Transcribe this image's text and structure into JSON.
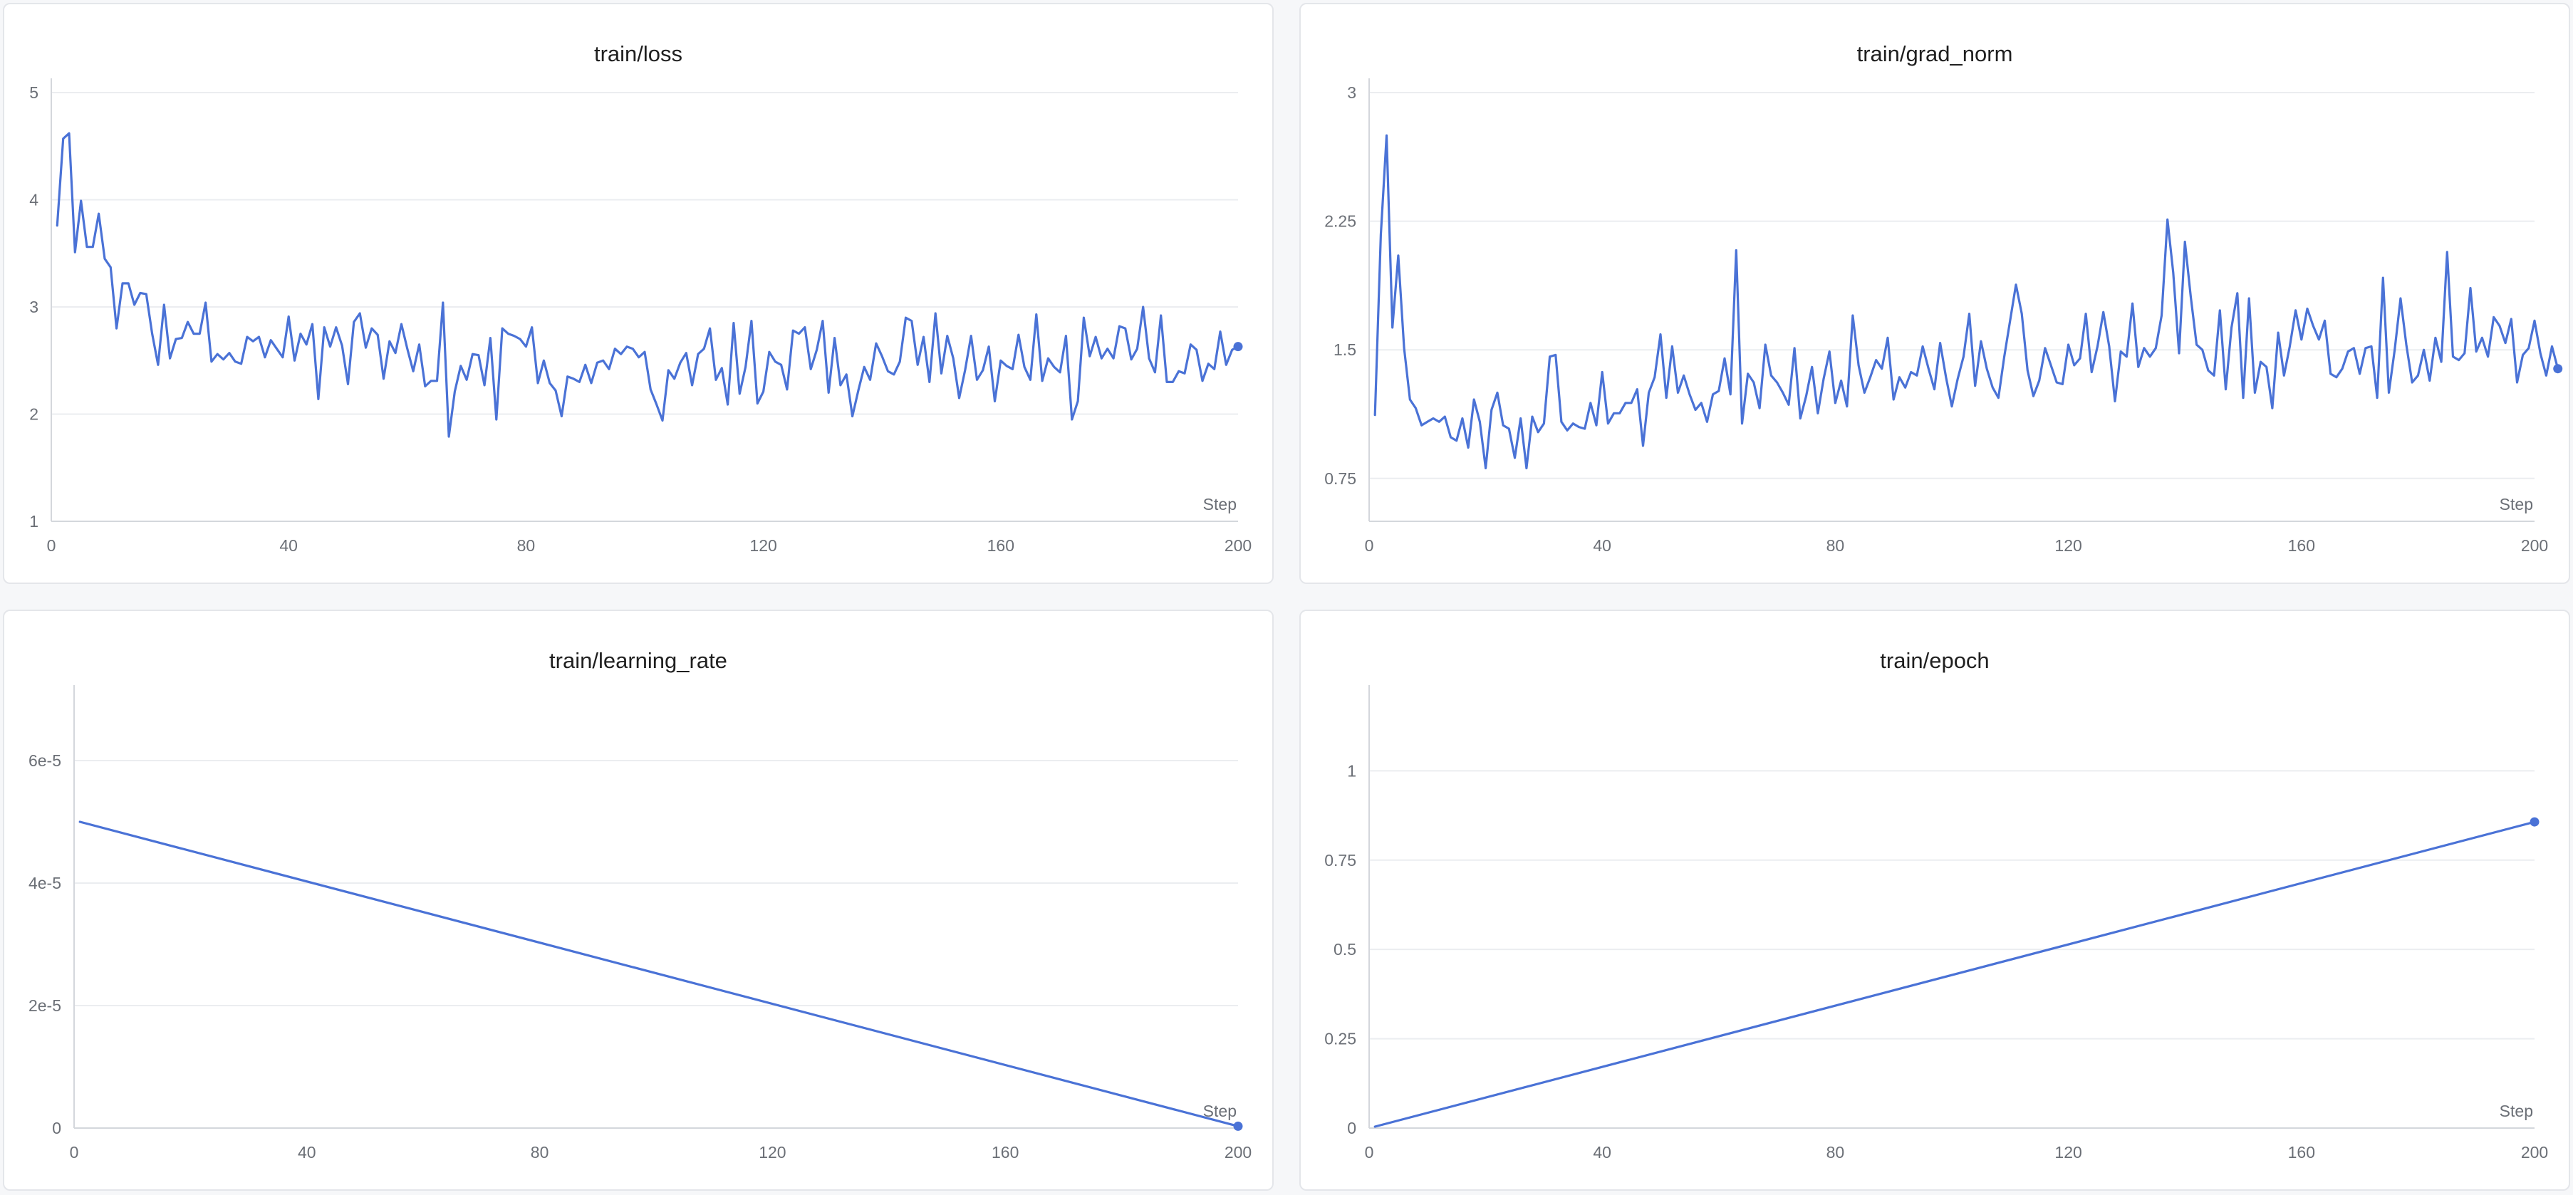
{
  "theme": {
    "line_color": "#4a72d6"
  },
  "panels": [
    {
      "title": "train/loss"
    },
    {
      "title": "train/grad_norm"
    },
    {
      "title": "train/learning_rate"
    },
    {
      "title": "train/epoch"
    }
  ],
  "chart_data": [
    {
      "type": "line",
      "title": "train/loss",
      "xlabel": "Step",
      "ylabel": "",
      "xlim": [
        0,
        200
      ],
      "ylim": [
        1,
        5
      ],
      "x_ticks": [
        0,
        40,
        80,
        120,
        160,
        200
      ],
      "y_ticks": [
        1,
        2,
        3,
        4,
        5
      ],
      "y_tick_labels": [
        "1",
        "2",
        "3",
        "4",
        "5"
      ],
      "grid": true,
      "series": [
        {
          "x_start": 1,
          "x_step": 1,
          "values": [
            3.76,
            4.57,
            4.62,
            3.51,
            3.99,
            3.56,
            3.56,
            3.87,
            3.45,
            3.37,
            2.8,
            3.22,
            3.22,
            3.02,
            3.13,
            3.12,
            2.75,
            2.46,
            3.02,
            2.52,
            2.7,
            2.71,
            2.86,
            2.75,
            2.75,
            3.04,
            2.49,
            2.56,
            2.51,
            2.57,
            2.49,
            2.47,
            2.72,
            2.68,
            2.72,
            2.53,
            2.69,
            2.61,
            2.53,
            2.91,
            2.5,
            2.75,
            2.65,
            2.84,
            2.14,
            2.81,
            2.63,
            2.81,
            2.64,
            2.28,
            2.86,
            2.94,
            2.62,
            2.8,
            2.74,
            2.33,
            2.68,
            2.57,
            2.84,
            2.61,
            2.4,
            2.65,
            2.26,
            2.31,
            2.31,
            3.04,
            1.79,
            2.21,
            2.45,
            2.32,
            2.56,
            2.55,
            2.27,
            2.71,
            1.95,
            2.8,
            2.75,
            2.73,
            2.7,
            2.63,
            2.81,
            2.29,
            2.5,
            2.29,
            2.22,
            1.98,
            2.35,
            2.33,
            2.3,
            2.46,
            2.29,
            2.48,
            2.5,
            2.42,
            2.61,
            2.56,
            2.63,
            2.61,
            2.53,
            2.58,
            2.23,
            2.09,
            1.94,
            2.41,
            2.33,
            2.48,
            2.57,
            2.27,
            2.56,
            2.61,
            2.8,
            2.32,
            2.43,
            2.09,
            2.85,
            2.19,
            2.44,
            2.87,
            2.1,
            2.21,
            2.58,
            2.49,
            2.46,
            2.23,
            2.78,
            2.75,
            2.81,
            2.42,
            2.6,
            2.87,
            2.2,
            2.71,
            2.27,
            2.37,
            1.98,
            2.22,
            2.44,
            2.32,
            2.66,
            2.54,
            2.4,
            2.37,
            2.49,
            2.9,
            2.87,
            2.46,
            2.72,
            2.3,
            2.94,
            2.38,
            2.73,
            2.52,
            2.15,
            2.41,
            2.73,
            2.32,
            2.41,
            2.63,
            2.12,
            2.5,
            2.45,
            2.42,
            2.74,
            2.44,
            2.32,
            2.93,
            2.31,
            2.52,
            2.44,
            2.39,
            2.73,
            1.95,
            2.12,
            2.9,
            2.54,
            2.72,
            2.52,
            2.61,
            2.52,
            2.82,
            2.8,
            2.51,
            2.61,
            3.0,
            2.52,
            2.39,
            2.92,
            2.3,
            2.3,
            2.4,
            2.38,
            2.65,
            2.6,
            2.31,
            2.47,
            2.42,
            2.77,
            2.46,
            2.6,
            2.63
          ]
        }
      ]
    },
    {
      "type": "line",
      "title": "train/grad_norm",
      "xlabel": "Step",
      "ylabel": "",
      "xlim": [
        0,
        200
      ],
      "ylim": [
        0.5,
        3
      ],
      "x_ticks": [
        0,
        40,
        80,
        120,
        160,
        200
      ],
      "y_ticks": [
        0.75,
        1.5,
        2.25,
        3
      ],
      "y_tick_labels": [
        "0.75",
        "1.5",
        "2.25",
        "3"
      ],
      "grid": true,
      "series": [
        {
          "x_start": 1,
          "x_step": 1,
          "values": [
            1.12,
            2.17,
            2.75,
            1.63,
            2.05,
            1.51,
            1.21,
            1.16,
            1.06,
            1.08,
            1.1,
            1.08,
            1.11,
            0.99,
            0.97,
            1.1,
            0.93,
            1.21,
            1.08,
            0.81,
            1.15,
            1.25,
            1.06,
            1.04,
            0.87,
            1.1,
            0.81,
            1.11,
            1.02,
            1.07,
            1.46,
            1.47,
            1.08,
            1.03,
            1.07,
            1.05,
            1.04,
            1.19,
            1.06,
            1.37,
            1.07,
            1.13,
            1.13,
            1.19,
            1.19,
            1.27,
            0.94,
            1.25,
            1.34,
            1.59,
            1.22,
            1.52,
            1.25,
            1.35,
            1.24,
            1.15,
            1.19,
            1.08,
            1.24,
            1.26,
            1.45,
            1.24,
            2.08,
            1.07,
            1.36,
            1.31,
            1.16,
            1.53,
            1.35,
            1.31,
            1.25,
            1.18,
            1.51,
            1.1,
            1.23,
            1.4,
            1.13,
            1.33,
            1.49,
            1.19,
            1.32,
            1.17,
            1.7,
            1.41,
            1.25,
            1.34,
            1.44,
            1.39,
            1.57,
            1.21,
            1.34,
            1.28,
            1.37,
            1.35,
            1.52,
            1.39,
            1.27,
            1.54,
            1.34,
            1.17,
            1.33,
            1.46,
            1.71,
            1.29,
            1.55,
            1.39,
            1.28,
            1.22,
            1.46,
            1.67,
            1.88,
            1.71,
            1.38,
            1.23,
            1.32,
            1.51,
            1.41,
            1.31,
            1.3,
            1.53,
            1.41,
            1.45,
            1.71,
            1.37,
            1.52,
            1.72,
            1.52,
            1.2,
            1.49,
            1.46,
            1.77,
            1.4,
            1.51,
            1.46,
            1.51,
            1.7,
            2.26,
            1.95,
            1.48,
            2.13,
            1.81,
            1.53,
            1.5,
            1.38,
            1.35,
            1.73,
            1.27,
            1.63,
            1.83,
            1.22,
            1.8,
            1.25,
            1.43,
            1.4,
            1.16,
            1.6,
            1.35,
            1.52,
            1.73,
            1.56,
            1.74,
            1.64,
            1.56,
            1.67,
            1.36,
            1.34,
            1.39,
            1.49,
            1.51,
            1.36,
            1.51,
            1.52,
            1.22,
            1.92,
            1.25,
            1.5,
            1.8,
            1.53,
            1.31,
            1.35,
            1.5,
            1.32,
            1.57,
            1.43,
            2.07,
            1.46,
            1.44,
            1.48,
            1.86,
            1.49,
            1.57,
            1.46,
            1.69,
            1.64,
            1.54,
            1.68,
            1.31,
            1.47,
            1.51,
            1.67,
            1.48,
            1.35,
            1.52,
            1.39
          ]
        }
      ]
    },
    {
      "type": "line",
      "title": "train/learning_rate",
      "xlabel": "Step",
      "ylabel": "",
      "xlim": [
        0,
        200
      ],
      "ylim": [
        0,
        7e-05
      ],
      "x_ticks": [
        0,
        40,
        80,
        120,
        160,
        200
      ],
      "y_ticks": [
        0,
        2e-05,
        4e-05,
        6e-05
      ],
      "y_tick_labels": [
        "0",
        "2e-5",
        "4e-5",
        "6e-5"
      ],
      "grid": true,
      "series": [
        {
          "x": [
            1,
            200
          ],
          "values": [
            5e-05,
            3e-07
          ]
        }
      ]
    },
    {
      "type": "line",
      "title": "train/epoch",
      "xlabel": "Step",
      "ylabel": "",
      "xlim": [
        0,
        200
      ],
      "ylim": [
        0,
        1.2
      ],
      "x_ticks": [
        0,
        40,
        80,
        120,
        160,
        200
      ],
      "y_ticks": [
        0,
        0.25,
        0.5,
        0.75,
        1
      ],
      "y_tick_labels": [
        "0",
        "0.25",
        "0.5",
        "0.75",
        "1"
      ],
      "grid": true,
      "series": [
        {
          "x": [
            1,
            200
          ],
          "values": [
            0.004,
            0.857
          ]
        }
      ]
    }
  ]
}
